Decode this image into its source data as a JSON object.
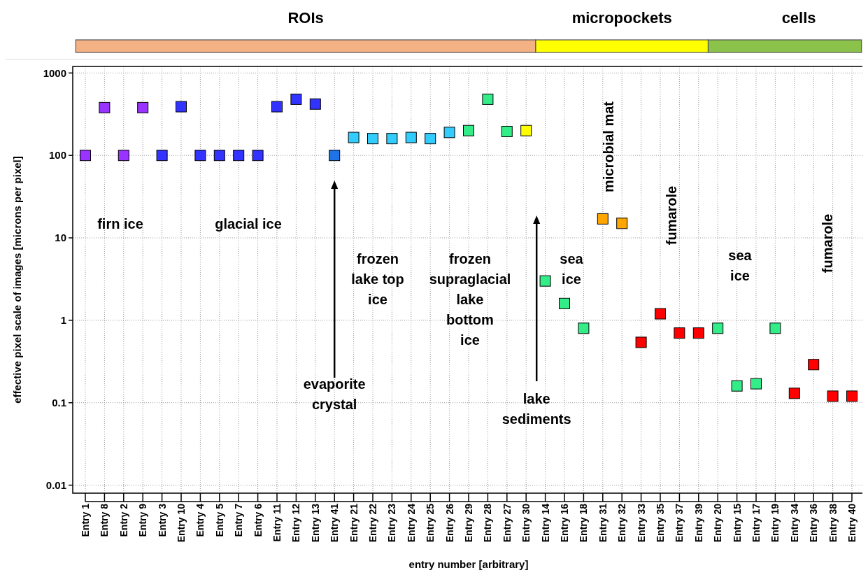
{
  "chart_data": {
    "type": "scatter",
    "xlabel": "entry number [arbitrary]",
    "ylabel": "effective pixel scale of images [microns per pixel]",
    "categories": [
      "Entry 1",
      "Entry 8",
      "Entry 2",
      "Entry 9",
      "Entry 3",
      "Entry 10",
      "Entry 4",
      "Entry 5",
      "Entry 7",
      "Entry 6",
      "Entry 11",
      "Entry 12",
      "Entry 13",
      "Entry 41",
      "Entry 21",
      "Entry 22",
      "Entry 23",
      "Entry 24",
      "Entry 25",
      "Entry 26",
      "Entry 29",
      "Entry 28",
      "Entry 27",
      "Entry 30",
      "Entry 14",
      "Entry 16",
      "Entry 18",
      "Entry 31",
      "Entry 32",
      "Entry 33",
      "Entry 35",
      "Entry 37",
      "Entry 39",
      "Entry 20",
      "Entry 15",
      "Entry 17",
      "Entry 19",
      "Entry 34",
      "Entry 36",
      "Entry 38",
      "Entry 40"
    ],
    "values": [
      100,
      380,
      100,
      380,
      100,
      390,
      100,
      100,
      100,
      100,
      390,
      480,
      420,
      100,
      165,
      160,
      160,
      165,
      160,
      190,
      200,
      480,
      195,
      200,
      3,
      1.6,
      0.8,
      17,
      15,
      0.54,
      1.2,
      0.7,
      0.7,
      0.8,
      0.16,
      0.17,
      0.8,
      0.13,
      0.29,
      0.12,
      0.12
    ],
    "colors": [
      "#9933ff",
      "#9933ff",
      "#9933ff",
      "#9933ff",
      "#3333ff",
      "#3333ff",
      "#3333ff",
      "#3333ff",
      "#3333ff",
      "#3333ff",
      "#3333ff",
      "#3333ff",
      "#3333ff",
      "#1e73e6",
      "#33ccff",
      "#33ccff",
      "#33ccff",
      "#33ccff",
      "#33ccff",
      "#33ccff",
      "#33ee88",
      "#33ee88",
      "#33ee88",
      "#ffff00",
      "#33ee88",
      "#33ee88",
      "#33ee88",
      "#ffa500",
      "#ffa500",
      "#ff0000",
      "#ff0000",
      "#ff0000",
      "#ff0000",
      "#33ee88",
      "#33ee88",
      "#33ee88",
      "#33ee88",
      "#ff0000",
      "#ff0000",
      "#ff0000",
      "#ff0000"
    ],
    "log": "y",
    "ylim": [
      0.008,
      1200
    ],
    "yticks": [
      0.01,
      0.1,
      1,
      10,
      100,
      1000
    ],
    "grid": true,
    "marker": "square",
    "annotations": [
      "ROIs",
      "micropockets",
      "cells",
      "firn ice",
      "glacial ice",
      "evaporite crystal",
      "frozen lake top ice",
      "frozen supraglacial lake bottom ice",
      "lake sediments",
      "sea ice",
      "microbial mat",
      "fumarole",
      "sea ice",
      "fumarole"
    ]
  }
}
